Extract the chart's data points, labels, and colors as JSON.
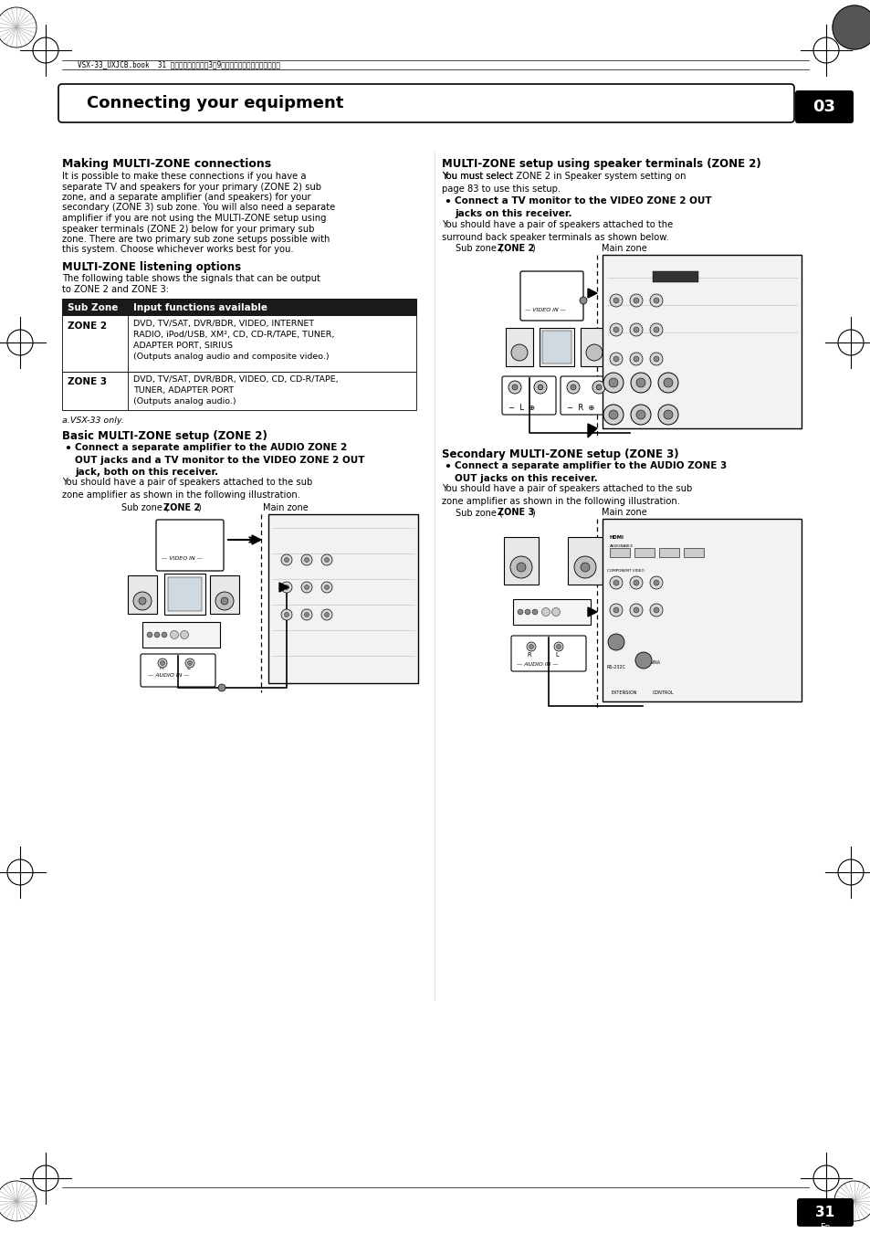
{
  "page_bg": "#ffffff",
  "header_text": "VSX-33_UXJCB.book  31 ページ　２０１０年3月9日　火曜日　午前１０時３９分",
  "chapter_title": "Connecting your equipment",
  "chapter_num": "03",
  "page_num": "31",
  "section1_title": "Making MULTI-ZONE connections",
  "section2_title": "MULTI-ZONE listening options",
  "table_header": [
    "Sub Zone",
    "Input functions available"
  ],
  "footnote": "a.VSX-33 only.",
  "section3_title": "Basic MULTI-ZONE setup (ZONE 2)",
  "section4_title": "MULTI-ZONE setup using speaker terminals (ZONE 2)",
  "section5_title": "Secondary MULTI-ZONE setup (ZONE 3)"
}
